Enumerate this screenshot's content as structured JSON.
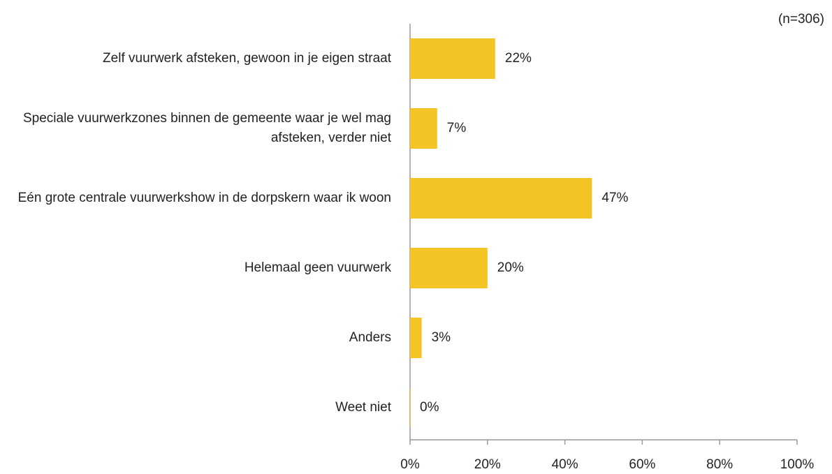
{
  "chart_data": {
    "type": "hbar",
    "note": "(n=306)",
    "categories": [
      "Zelf vuurwerk afsteken, gewoon in je eigen straat",
      "Speciale vuurwerkzones binnen de gemeente waar je wel mag afsteken, verder niet",
      "Eén grote centrale vuurwerkshow in de dorpskern waar ik woon",
      "Helemaal geen vuurwerk",
      "Anders",
      "Weet niet"
    ],
    "values": [
      22,
      7,
      47,
      20,
      3,
      0
    ],
    "value_labels": [
      "22%",
      "7%",
      "47%",
      "20%",
      "3%",
      "0%"
    ],
    "color": "#f4c324",
    "xlim": [
      0,
      100
    ],
    "xticks": [
      {
        "value": 0,
        "label": "0%"
      },
      {
        "value": 20,
        "label": "20%"
      },
      {
        "value": 40,
        "label": "40%"
      },
      {
        "value": 60,
        "label": "60%"
      },
      {
        "value": 80,
        "label": "80%"
      },
      {
        "value": 100,
        "label": "100%"
      }
    ]
  }
}
